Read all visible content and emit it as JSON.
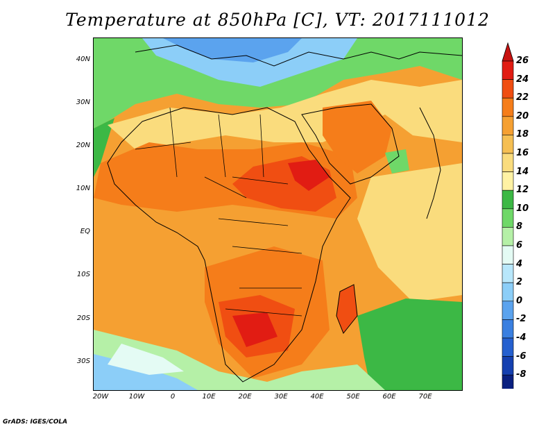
{
  "title": "Temperature at 850hPa [C], VT: 2017111012",
  "credit": "GrADS: IGES/COLA",
  "map": {
    "lat_labels": [
      "40N",
      "30N",
      "20N",
      "10N",
      "EQ",
      "10S",
      "20S",
      "30S"
    ],
    "lon_labels": [
      "20W",
      "10W",
      "0",
      "10E",
      "20E",
      "30E",
      "40E",
      "50E",
      "60E",
      "70E"
    ],
    "ocean_color": "#f2a93b"
  },
  "colorbar": {
    "labels": [
      "26",
      "24",
      "22",
      "20",
      "18",
      "16",
      "14",
      "12",
      "10",
      "8",
      "6",
      "4",
      "2",
      "0",
      "-2",
      "-4",
      "-6",
      "-8"
    ],
    "colors": [
      "#e11c13",
      "#f04e12",
      "#f57d1a",
      "#f5a032",
      "#f5bf53",
      "#fadc7d",
      "#fff2a4",
      "#3cb845",
      "#6fd868",
      "#b5f0a7",
      "#e4fbf4",
      "#b8e7fb",
      "#8ccef8",
      "#5ba3ee",
      "#3a7fe0",
      "#2560cf",
      "#1540b0",
      "#0a2080"
    ],
    "top_arrow_color": "#c81210",
    "bottom_arrow_color": "#d8d6fa"
  }
}
